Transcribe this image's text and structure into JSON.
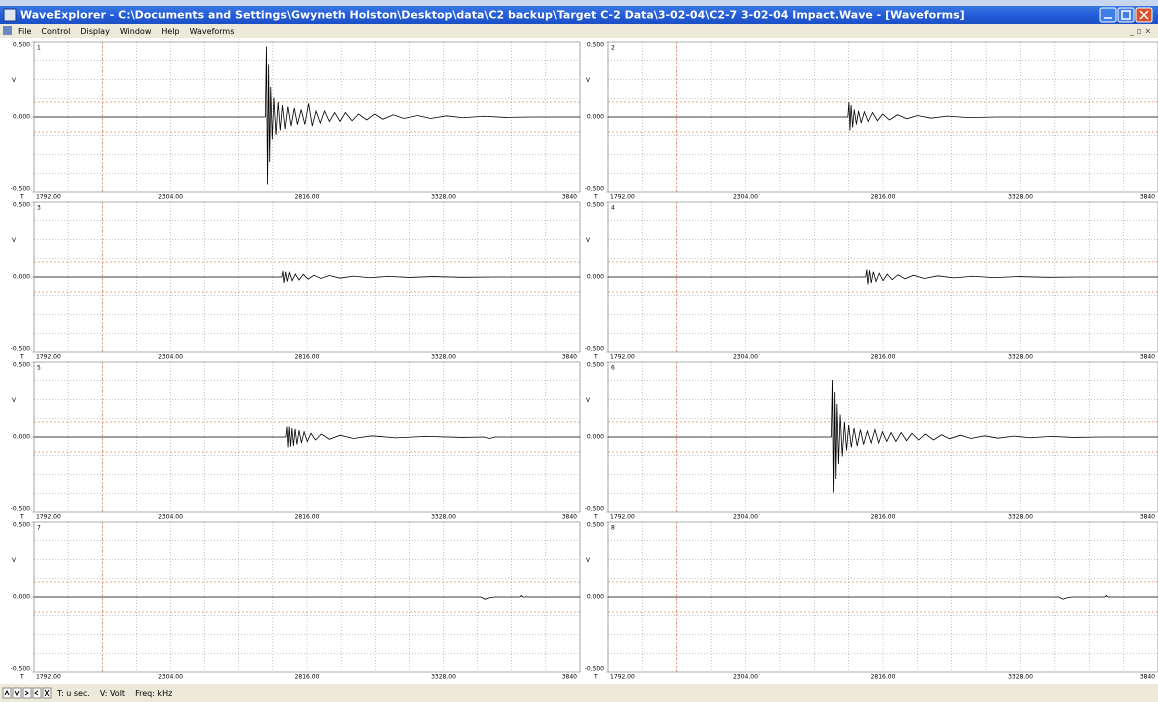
{
  "window": {
    "title": "WaveExplorer - C:\\Documents and Settings\\Gwyneth Holston\\Desktop\\data\\C2 backup\\Target C-2 Data\\3-02-04\\C2-7 3-02-04 Impact.Wave - [Waveforms]",
    "menu": [
      "File",
      "Control",
      "Display",
      "Window",
      "Help",
      "Waveforms"
    ],
    "status": [
      "T: u sec.",
      "V: Volt",
      "Freq: kHz"
    ]
  },
  "chart_data": [
    {
      "type": "line",
      "title": "1",
      "color": "#000000",
      "xlabel": "T",
      "ylabel": "V",
      "xlim": [
        1792,
        3840
      ],
      "ylim": [
        -0.5,
        0.5
      ],
      "xticks": [
        {
          "value": 1792,
          "label": "1792.00"
        },
        {
          "value": 2304,
          "label": "2304.00"
        },
        {
          "value": 2816,
          "label": "2816.00"
        },
        {
          "value": 3328,
          "label": "3328.00"
        },
        3840
      ],
      "yticks": [
        {
          "value": 0.5,
          "label": "0.500"
        },
        {
          "value": 0,
          "label": "0.000"
        },
        {
          "value": -0.5,
          "label": "-0.500"
        }
      ],
      "x_minor_ticks": [
        1920,
        2048,
        2176,
        2432,
        2560,
        2688,
        2944,
        3072,
        3200,
        3456,
        3584,
        3712
      ],
      "y_minor_ticks": [
        -0.375,
        -0.25,
        -0.125,
        0.125,
        0.25,
        0.375
      ],
      "threshold": 0.1,
      "trigger": 2048,
      "grid": true,
      "x": [
        1792,
        2660,
        2664,
        2668,
        2672,
        2676,
        2680,
        2686,
        2692,
        2700,
        2708,
        2716,
        2724,
        2734,
        2744,
        2756,
        2768,
        2780,
        2794,
        2808,
        2822,
        2836,
        2850,
        2866,
        2882,
        2900,
        2920,
        2940,
        2960,
        2985,
        3010,
        3040,
        3070,
        3100,
        3140,
        3180,
        3230,
        3280,
        3340,
        3400,
        3480,
        3560,
        3660,
        3840
      ],
      "values": [
        0,
        0,
        0.47,
        -0.45,
        0.35,
        -0.3,
        0.2,
        -0.15,
        0.13,
        -0.12,
        0.1,
        -0.09,
        0.08,
        -0.08,
        0.07,
        -0.06,
        0.06,
        -0.05,
        0.05,
        -0.05,
        0.09,
        -0.06,
        0.04,
        -0.04,
        0.04,
        -0.03,
        0.03,
        -0.03,
        0.03,
        -0.025,
        0.02,
        -0.02,
        0.02,
        -0.015,
        0.015,
        -0.01,
        0.01,
        -0.01,
        0.008,
        -0.005,
        0.005,
        -0.003,
        0,
        0
      ]
    },
    {
      "type": "line",
      "title": "2",
      "color": "#000000",
      "xlabel": "T",
      "ylabel": "V",
      "xlim": [
        1792,
        3840
      ],
      "ylim": [
        -0.5,
        0.5
      ],
      "xticks": [
        {
          "value": 1792,
          "label": "1792.00"
        },
        {
          "value": 2304,
          "label": "2304.00"
        },
        {
          "value": 2816,
          "label": "2816.00"
        },
        {
          "value": 3328,
          "label": "3328.00"
        },
        3840
      ],
      "yticks": [
        {
          "value": 0.5,
          "label": "0.500"
        },
        {
          "value": 0,
          "label": "0.000"
        },
        {
          "value": -0.5,
          "label": "-0.500"
        }
      ],
      "x_minor_ticks": [
        1920,
        2048,
        2176,
        2432,
        2560,
        2688,
        2944,
        3072,
        3200,
        3456,
        3584,
        3712
      ],
      "y_minor_ticks": [
        -0.375,
        -0.25,
        -0.125,
        0.125,
        0.25,
        0.375
      ],
      "threshold": 0.1,
      "trigger": 2048,
      "grid": true,
      "x": [
        1792,
        2685,
        2689,
        2693,
        2697,
        2703,
        2709,
        2717,
        2725,
        2735,
        2747,
        2761,
        2777,
        2795,
        2815,
        2840,
        2870,
        2905,
        2945,
        2995,
        3055,
        3135,
        3235,
        3840
      ],
      "values": [
        0,
        0,
        0.1,
        -0.09,
        0.08,
        -0.07,
        0.05,
        -0.05,
        0.04,
        -0.04,
        0.035,
        -0.03,
        0.03,
        -0.025,
        0.02,
        -0.02,
        0.015,
        -0.012,
        0.01,
        -0.008,
        0.006,
        -0.004,
        0,
        0
      ]
    },
    {
      "type": "line",
      "title": "3",
      "color": "#000000",
      "xlabel": "T",
      "ylabel": "V",
      "xlim": [
        1792,
        3840
      ],
      "ylim": [
        -0.5,
        0.5
      ],
      "xticks": [
        {
          "value": 1792,
          "label": "1792.00"
        },
        {
          "value": 2304,
          "label": "2304.00"
        },
        {
          "value": 2816,
          "label": "2816.00"
        },
        {
          "value": 3328,
          "label": "3328.00"
        },
        3840
      ],
      "yticks": [
        {
          "value": 0.5,
          "label": "0.500"
        },
        {
          "value": 0,
          "label": "0.000"
        },
        {
          "value": -0.5,
          "label": "-0.500"
        }
      ],
      "x_minor_ticks": [
        1920,
        2048,
        2176,
        2432,
        2560,
        2688,
        2944,
        3072,
        3200,
        3456,
        3584,
        3712
      ],
      "y_minor_ticks": [
        -0.375,
        -0.25,
        -0.125,
        0.125,
        0.25,
        0.375
      ],
      "threshold": 0.1,
      "trigger": 2048,
      "grid": true,
      "x": [
        1792,
        2722,
        2726,
        2730,
        2736,
        2742,
        2750,
        2760,
        2772,
        2786,
        2802,
        2820,
        2842,
        2868,
        2900,
        2940,
        2990,
        3050,
        3120,
        3200,
        3290,
        3400,
        3520,
        3840
      ],
      "values": [
        0,
        0,
        0.04,
        -0.04,
        0.035,
        -0.03,
        0.03,
        -0.025,
        0.02,
        -0.02,
        0.018,
        -0.015,
        0.012,
        -0.01,
        0.01,
        -0.008,
        0.006,
        -0.005,
        0.004,
        -0.003,
        0.003,
        -0.002,
        0,
        0
      ]
    },
    {
      "type": "line",
      "title": "4",
      "color": "#000000",
      "xlabel": "T",
      "ylabel": "V",
      "xlim": [
        1792,
        3840
      ],
      "ylim": [
        -0.5,
        0.5
      ],
      "xticks": [
        {
          "value": 1792,
          "label": "1792.00"
        },
        {
          "value": 2304,
          "label": "2304.00"
        },
        {
          "value": 2816,
          "label": "2816.00"
        },
        {
          "value": 3328,
          "label": "3328.00"
        },
        3840
      ],
      "yticks": [
        {
          "value": 0.5,
          "label": "0.500"
        },
        {
          "value": 0,
          "label": "0.000"
        },
        {
          "value": -0.5,
          "label": "-0.500"
        }
      ],
      "x_minor_ticks": [
        1920,
        2048,
        2176,
        2432,
        2560,
        2688,
        2944,
        3072,
        3200,
        3456,
        3584,
        3712
      ],
      "y_minor_ticks": [
        -0.375,
        -0.25,
        -0.125,
        0.125,
        0.25,
        0.375
      ],
      "threshold": 0.1,
      "trigger": 2048,
      "grid": true,
      "x": [
        1792,
        2752,
        2756,
        2760,
        2766,
        2772,
        2780,
        2790,
        2802,
        2816,
        2832,
        2850,
        2872,
        2898,
        2930,
        2970,
        3020,
        3080,
        3150,
        3230,
        3320,
        3430,
        3550,
        3840
      ],
      "values": [
        0,
        0,
        0.05,
        -0.05,
        0.045,
        -0.04,
        0.035,
        -0.03,
        0.025,
        -0.025,
        0.02,
        -0.018,
        0.015,
        -0.012,
        0.012,
        -0.01,
        0.008,
        -0.006,
        0.005,
        -0.004,
        0.003,
        -0.002,
        0,
        0
      ]
    },
    {
      "type": "line",
      "title": "5",
      "color": "#000000",
      "xlabel": "T",
      "ylabel": "V",
      "xlim": [
        1792,
        3840
      ],
      "ylim": [
        -0.5,
        0.5
      ],
      "xticks": [
        {
          "value": 1792,
          "label": "1792.00"
        },
        {
          "value": 2304,
          "label": "2304.00"
        },
        {
          "value": 2816,
          "label": "2816.00"
        },
        {
          "value": 3328,
          "label": "3328.00"
        },
        3840
      ],
      "yticks": [
        {
          "value": 0.5,
          "label": "0.500"
        },
        {
          "value": 0,
          "label": "0.000"
        },
        {
          "value": -0.5,
          "label": "-0.500"
        }
      ],
      "x_minor_ticks": [
        1920,
        2048,
        2176,
        2432,
        2560,
        2688,
        2944,
        3072,
        3200,
        3456,
        3584,
        3712
      ],
      "y_minor_ticks": [
        -0.375,
        -0.25,
        -0.125,
        0.125,
        0.25,
        0.375
      ],
      "threshold": 0.1,
      "trigger": 2048,
      "grid": true,
      "x": [
        1792,
        2737,
        2741,
        2745,
        2749,
        2754,
        2759,
        2765,
        2771,
        2778,
        2786,
        2795,
        2805,
        2817,
        2831,
        2848,
        2870,
        2900,
        2940,
        2990,
        3060,
        3150,
        3260,
        3400,
        3480,
        3500,
        3520,
        3840
      ],
      "values": [
        0,
        0,
        0.07,
        -0.07,
        0.07,
        -0.065,
        0.06,
        -0.06,
        0.055,
        -0.05,
        0.045,
        -0.04,
        0.035,
        -0.03,
        0.025,
        -0.02,
        0.02,
        -0.015,
        0.012,
        -0.01,
        0.008,
        -0.006,
        0.004,
        -0.003,
        0,
        -0.01,
        0,
        0
      ]
    },
    {
      "type": "line",
      "title": "6",
      "color": "#000000",
      "xlabel": "T",
      "ylabel": "V",
      "xlim": [
        1792,
        3840
      ],
      "ylim": [
        -0.5,
        0.5
      ],
      "xticks": [
        {
          "value": 1792,
          "label": "1792.00"
        },
        {
          "value": 2304,
          "label": "2304.00"
        },
        {
          "value": 2816,
          "label": "2816.00"
        },
        {
          "value": 3328,
          "label": "3328.00"
        },
        3840
      ],
      "yticks": [
        {
          "value": 0.5,
          "label": "0.500"
        },
        {
          "value": 0,
          "label": "0.000"
        },
        {
          "value": -0.5,
          "label": "-0.500"
        }
      ],
      "x_minor_ticks": [
        1920,
        2048,
        2176,
        2432,
        2560,
        2688,
        2944,
        3072,
        3200,
        3456,
        3584,
        3712
      ],
      "y_minor_ticks": [
        -0.375,
        -0.25,
        -0.125,
        0.125,
        0.25,
        0.375
      ],
      "threshold": 0.1,
      "trigger": 2048,
      "grid": true,
      "x": [
        1792,
        2624,
        2628,
        2632,
        2636,
        2640,
        2644,
        2650,
        2656,
        2664,
        2672,
        2680,
        2688,
        2698,
        2708,
        2720,
        2732,
        2744,
        2758,
        2772,
        2786,
        2800,
        2814,
        2830,
        2846,
        2864,
        2884,
        2904,
        2924,
        2949,
        2974,
        3004,
        3034,
        3064,
        3104,
        3144,
        3194,
        3244,
        3304,
        3364,
        3444,
        3524,
        3624,
        3840
      ],
      "values": [
        0,
        0,
        0.38,
        -0.37,
        0.3,
        -0.28,
        0.22,
        -0.18,
        0.15,
        -0.13,
        0.1,
        -0.09,
        0.08,
        -0.07,
        0.06,
        -0.06,
        0.05,
        -0.05,
        0.04,
        -0.04,
        0.05,
        -0.04,
        0.035,
        -0.03,
        0.03,
        -0.03,
        0.03,
        -0.025,
        0.025,
        -0.02,
        0.02,
        -0.02,
        0.015,
        -0.012,
        0.012,
        -0.01,
        0.008,
        -0.008,
        0.006,
        -0.005,
        0.004,
        -0.003,
        0,
        0
      ]
    },
    {
      "type": "line",
      "title": "7",
      "color": "#000000",
      "xlabel": "T",
      "ylabel": "V",
      "xlim": [
        1792,
        3840
      ],
      "ylim": [
        -0.5,
        0.5
      ],
      "xticks": [
        {
          "value": 1792,
          "label": "1792.00"
        },
        {
          "value": 2304,
          "label": "2304.00"
        },
        {
          "value": 2816,
          "label": "2816.00"
        },
        {
          "value": 3328,
          "label": "3328.00"
        },
        3840
      ],
      "yticks": [
        {
          "value": 0.5,
          "label": "0.500"
        },
        {
          "value": 0,
          "label": "0.000"
        },
        {
          "value": -0.5,
          "label": "-0.500"
        }
      ],
      "x_minor_ticks": [
        1920,
        2048,
        2176,
        2432,
        2560,
        2688,
        2944,
        3072,
        3200,
        3456,
        3584,
        3712
      ],
      "y_minor_ticks": [
        -0.375,
        -0.25,
        -0.125,
        0.125,
        0.25,
        0.375
      ],
      "threshold": 0.1,
      "trigger": 2048,
      "grid": true,
      "x": [
        1792,
        3470,
        3484,
        3500,
        3520,
        3615,
        3620,
        3625,
        3840
      ],
      "values": [
        0,
        0,
        -0.015,
        -0.005,
        0,
        0,
        0.01,
        0,
        0
      ]
    },
    {
      "type": "line",
      "title": "8",
      "color": "#000000",
      "xlabel": "T",
      "ylabel": "V",
      "xlim": [
        1792,
        3840
      ],
      "ylim": [
        -0.5,
        0.5
      ],
      "xticks": [
        {
          "value": 1792,
          "label": "1792.00"
        },
        {
          "value": 2304,
          "label": "2304.00"
        },
        {
          "value": 2816,
          "label": "2816.00"
        },
        {
          "value": 3328,
          "label": "3328.00"
        },
        3840
      ],
      "yticks": [
        {
          "value": 0.5,
          "label": "0.500"
        },
        {
          "value": 0,
          "label": "0.000"
        },
        {
          "value": -0.5,
          "label": "-0.500"
        }
      ],
      "x_minor_ticks": [
        1920,
        2048,
        2176,
        2432,
        2560,
        2688,
        2944,
        3072,
        3200,
        3456,
        3584,
        3712
      ],
      "y_minor_ticks": [
        -0.375,
        -0.25,
        -0.125,
        0.125,
        0.25,
        0.375
      ],
      "threshold": 0.1,
      "trigger": 2048,
      "grid": true,
      "x": [
        1792,
        3470,
        3486,
        3502,
        3520,
        3642,
        3648,
        3654,
        3840
      ],
      "values": [
        0,
        0,
        -0.015,
        -0.005,
        0,
        0,
        0.01,
        0,
        0
      ]
    }
  ]
}
